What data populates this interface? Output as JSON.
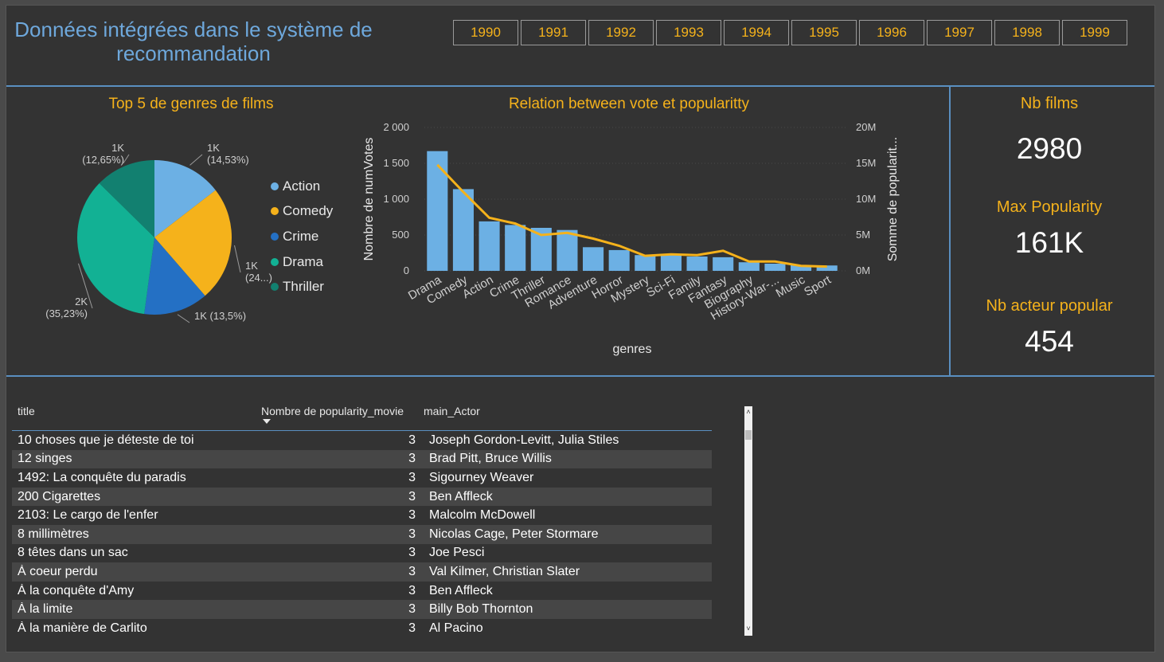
{
  "header": {
    "title_line1": "Données intégrées dans le système de",
    "title_line2": "recommandation"
  },
  "years": [
    "1990",
    "1991",
    "1992",
    "1993",
    "1994",
    "1995",
    "1996",
    "1997",
    "1998",
    "1999"
  ],
  "pie": {
    "title": "Top 5 de genres de films",
    "legend": [
      "Action",
      "Comedy",
      "Crime",
      "Drama",
      "Thriller"
    ]
  },
  "combo": {
    "title": "Relation between vote et popularitty",
    "xlabel": "genres",
    "ylabel_left": "Nombre de numVotes",
    "ylabel_right": "Somme de popularit..."
  },
  "kpis": {
    "nb_films_label": "Nb films",
    "nb_films_value": "2980",
    "max_pop_label": "Max Popularity",
    "max_pop_value": "161K",
    "nb_actor_label": "Nb acteur popular",
    "nb_actor_value": "454"
  },
  "table": {
    "headers": [
      "title",
      "Nombre de popularity_movie",
      "main_Actor"
    ],
    "rows": [
      [
        "10 choses que je déteste de toi",
        "3",
        "Joseph Gordon-Levitt, Julia Stiles"
      ],
      [
        "12 singes",
        "3",
        "Brad Pitt, Bruce Willis"
      ],
      [
        "1492: La conquête du paradis",
        "3",
        "Sigourney Weaver"
      ],
      [
        "200 Cigarettes",
        "3",
        "Ben Affleck"
      ],
      [
        "2103: Le cargo de l'enfer",
        "3",
        "Malcolm McDowell"
      ],
      [
        "8 millimètres",
        "3",
        "Nicolas Cage, Peter Stormare"
      ],
      [
        "8 têtes dans un sac",
        "3",
        "Joe Pesci"
      ],
      [
        "À coeur perdu",
        "3",
        "Val Kilmer, Christian Slater"
      ],
      [
        "À la conquête d'Amy",
        "3",
        "Ben Affleck"
      ],
      [
        "À la limite",
        "3",
        "Billy Bob Thornton"
      ],
      [
        "À la manière de Carlito",
        "3",
        "Al Pacino"
      ]
    ]
  },
  "chart_data": [
    {
      "type": "pie",
      "title": "Top 5 de genres de films",
      "categories": [
        "Action",
        "Comedy",
        "Crime",
        "Drama",
        "Thriller"
      ],
      "values": [
        14.53,
        24.09,
        13.5,
        35.23,
        12.65
      ],
      "labels": [
        "1K\n(14,53%)",
        "1K\n(24...)",
        "1K (13,5%)",
        "2K\n(35,23%)",
        "1K\n(12,65%)"
      ],
      "colors": [
        "#6cb0e4",
        "#f5b21b",
        "#2470c4",
        "#12b194",
        "#128070"
      ]
    },
    {
      "type": "bar",
      "title": "Relation between vote et popularitty",
      "xlabel": "genres",
      "ylabel": "Nombre de numVotes",
      "ylabel_right": "Somme de popularit...",
      "categories": [
        "Drama",
        "Comedy",
        "Action",
        "Crime",
        "Thriller",
        "Romance",
        "Adventure",
        "Horror",
        "Mystery",
        "Sci-Fi",
        "Family",
        "Fantasy",
        "Biography",
        "History-War-...",
        "Music",
        "Sport"
      ],
      "series": [
        {
          "name": "Nombre de numVotes",
          "type": "bar",
          "axis": "left",
          "values": [
            1670,
            1140,
            690,
            640,
            600,
            570,
            330,
            290,
            220,
            220,
            200,
            190,
            120,
            100,
            80,
            75
          ]
        },
        {
          "name": "Somme de popularit...",
          "type": "line",
          "axis": "right",
          "values": [
            14.8,
            11.0,
            7.4,
            6.6,
            5.0,
            5.3,
            4.5,
            3.5,
            2.1,
            2.3,
            2.2,
            2.8,
            1.3,
            1.3,
            0.7,
            0.6
          ]
        }
      ],
      "ylim": [
        0,
        2000
      ],
      "ylim_right": [
        0,
        20
      ],
      "yticks_left": [
        "0",
        "500",
        "1 000",
        "1 500",
        "2 000"
      ],
      "yticks_right": [
        "0M",
        "5M",
        "10M",
        "15M",
        "20M"
      ],
      "bar_color": "#6cb0e4",
      "line_color": "#f5b21b"
    }
  ]
}
